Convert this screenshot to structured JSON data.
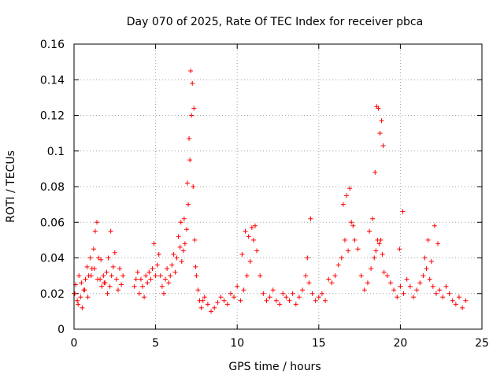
{
  "chart_data": {
    "type": "scatter",
    "title": "Day 070 of 2025, Rate Of TEC Index for receiver pbca",
    "xlabel": "GPS time / hours",
    "ylabel": "ROTI / TECUs",
    "xlim": [
      0,
      25
    ],
    "ylim": [
      0,
      0.16
    ],
    "xticks": [
      0,
      5,
      10,
      15,
      20,
      25
    ],
    "xtick_labels": [
      "0",
      "5",
      "10",
      "15",
      "20",
      "25"
    ],
    "yticks": [
      0,
      0.02,
      0.04,
      0.06,
      0.08,
      0.1,
      0.12,
      0.14,
      0.16
    ],
    "ytick_labels": [
      "0",
      "0.02",
      "0.04",
      "0.06",
      "0.08",
      "0.1",
      "0.12",
      "0.14",
      "0.16"
    ],
    "grid": true,
    "marker": "+",
    "marker_color": "#ff0000",
    "series": [
      {
        "name": "ROTI",
        "x": [
          0.0,
          0.1,
          0.2,
          0.3,
          0.4,
          0.5,
          0.6,
          0.7,
          0.8,
          0.9,
          1.0,
          1.1,
          1.2,
          1.3,
          1.4,
          1.5,
          1.6,
          1.7,
          1.8,
          1.9,
          2.0,
          2.1,
          2.2,
          2.3,
          2.4,
          2.5,
          2.6,
          2.7,
          2.8,
          2.9,
          3.0,
          3.7,
          3.8,
          3.9,
          4.0,
          4.1,
          4.2,
          4.3,
          4.4,
          4.5,
          4.6,
          4.7,
          4.8,
          4.9,
          5.0,
          5.1,
          5.2,
          5.3,
          5.4,
          5.5,
          5.6,
          5.7,
          5.8,
          5.9,
          6.0,
          6.1,
          6.2,
          6.3,
          6.4,
          6.5,
          6.6,
          6.7,
          6.8,
          6.9,
          7.0,
          7.1,
          7.2,
          7.3,
          7.4,
          7.5,
          7.6,
          7.7,
          7.8,
          7.9,
          8.0,
          8.2,
          8.4,
          8.6,
          8.8,
          9.0,
          9.2,
          9.4,
          9.6,
          9.8,
          10.0,
          10.2,
          10.4,
          10.6,
          10.8,
          11.0,
          11.2,
          11.4,
          11.6,
          11.8,
          12.0,
          12.2,
          12.4,
          12.6,
          12.8,
          13.0,
          13.2,
          13.4,
          13.6,
          13.8,
          14.0,
          14.2,
          14.4,
          14.6,
          14.8,
          15.0,
          15.2,
          15.4,
          15.6,
          15.8,
          16.0,
          16.2,
          16.4,
          16.6,
          16.8,
          17.0,
          17.2,
          17.4,
          17.6,
          17.8,
          18.0,
          18.2,
          18.4,
          18.5,
          18.6,
          18.7,
          18.8,
          18.9,
          19.0,
          19.2,
          19.4,
          19.6,
          19.8,
          20.0,
          20.2,
          20.4,
          20.6,
          20.8,
          21.0,
          21.2,
          21.4,
          21.6,
          21.8,
          22.0,
          22.2,
          22.4,
          22.6,
          22.8,
          23.0,
          23.2,
          23.4,
          23.6,
          23.8,
          24.0,
          0.05,
          0.25,
          0.45,
          0.65,
          0.85,
          1.05,
          1.25,
          1.45,
          1.65,
          1.85,
          2.05,
          2.25,
          6.55,
          6.75,
          6.95,
          7.05,
          7.15,
          7.25,
          7.35,
          7.45,
          10.3,
          10.5,
          10.7,
          10.9,
          11.1,
          14.3,
          14.5,
          16.5,
          16.7,
          16.9,
          17.1,
          18.1,
          18.3,
          18.45,
          18.55,
          18.65,
          18.75,
          18.85,
          18.95,
          19.95,
          20.15,
          21.5,
          21.7,
          21.9,
          22.1,
          22.3
        ],
        "y": [
          0.02,
          0.025,
          0.016,
          0.03,
          0.018,
          0.012,
          0.022,
          0.028,
          0.035,
          0.03,
          0.04,
          0.034,
          0.045,
          0.055,
          0.06,
          0.04,
          0.028,
          0.024,
          0.03,
          0.026,
          0.032,
          0.04,
          0.024,
          0.03,
          0.035,
          0.043,
          0.028,
          0.022,
          0.034,
          0.025,
          0.03,
          0.024,
          0.028,
          0.032,
          0.02,
          0.028,
          0.024,
          0.018,
          0.03,
          0.026,
          0.032,
          0.028,
          0.034,
          0.048,
          0.03,
          0.036,
          0.042,
          0.03,
          0.024,
          0.02,
          0.028,
          0.034,
          0.026,
          0.03,
          0.036,
          0.042,
          0.032,
          0.04,
          0.052,
          0.046,
          0.038,
          0.044,
          0.048,
          0.056,
          0.07,
          0.095,
          0.12,
          0.08,
          0.05,
          0.03,
          0.022,
          0.016,
          0.012,
          0.016,
          0.018,
          0.014,
          0.01,
          0.012,
          0.015,
          0.018,
          0.016,
          0.014,
          0.02,
          0.018,
          0.024,
          0.016,
          0.022,
          0.03,
          0.038,
          0.05,
          0.044,
          0.03,
          0.02,
          0.016,
          0.018,
          0.022,
          0.016,
          0.014,
          0.02,
          0.018,
          0.016,
          0.02,
          0.014,
          0.018,
          0.022,
          0.03,
          0.026,
          0.02,
          0.016,
          0.018,
          0.02,
          0.016,
          0.028,
          0.026,
          0.03,
          0.036,
          0.04,
          0.05,
          0.044,
          0.06,
          0.05,
          0.045,
          0.03,
          0.022,
          0.026,
          0.034,
          0.04,
          0.044,
          0.05,
          0.048,
          0.05,
          0.042,
          0.032,
          0.03,
          0.026,
          0.022,
          0.018,
          0.024,
          0.02,
          0.028,
          0.024,
          0.018,
          0.022,
          0.026,
          0.03,
          0.034,
          0.028,
          0.024,
          0.02,
          0.022,
          0.018,
          0.024,
          0.02,
          0.016,
          0.014,
          0.018,
          0.012,
          0.016,
          0.02,
          0.014,
          0.026,
          0.022,
          0.018,
          0.03,
          0.034,
          0.028,
          0.039,
          0.026,
          0.02,
          0.055,
          0.06,
          0.062,
          0.082,
          0.107,
          0.145,
          0.138,
          0.124,
          0.035,
          0.042,
          0.055,
          0.052,
          0.057,
          0.058,
          0.04,
          0.062,
          0.07,
          0.075,
          0.079,
          0.058,
          0.055,
          0.062,
          0.088,
          0.125,
          0.124,
          0.11,
          0.117,
          0.103,
          0.045,
          0.066,
          0.04,
          0.05,
          0.038,
          0.058,
          0.048
        ],
        "color": "#ff0000"
      }
    ]
  }
}
